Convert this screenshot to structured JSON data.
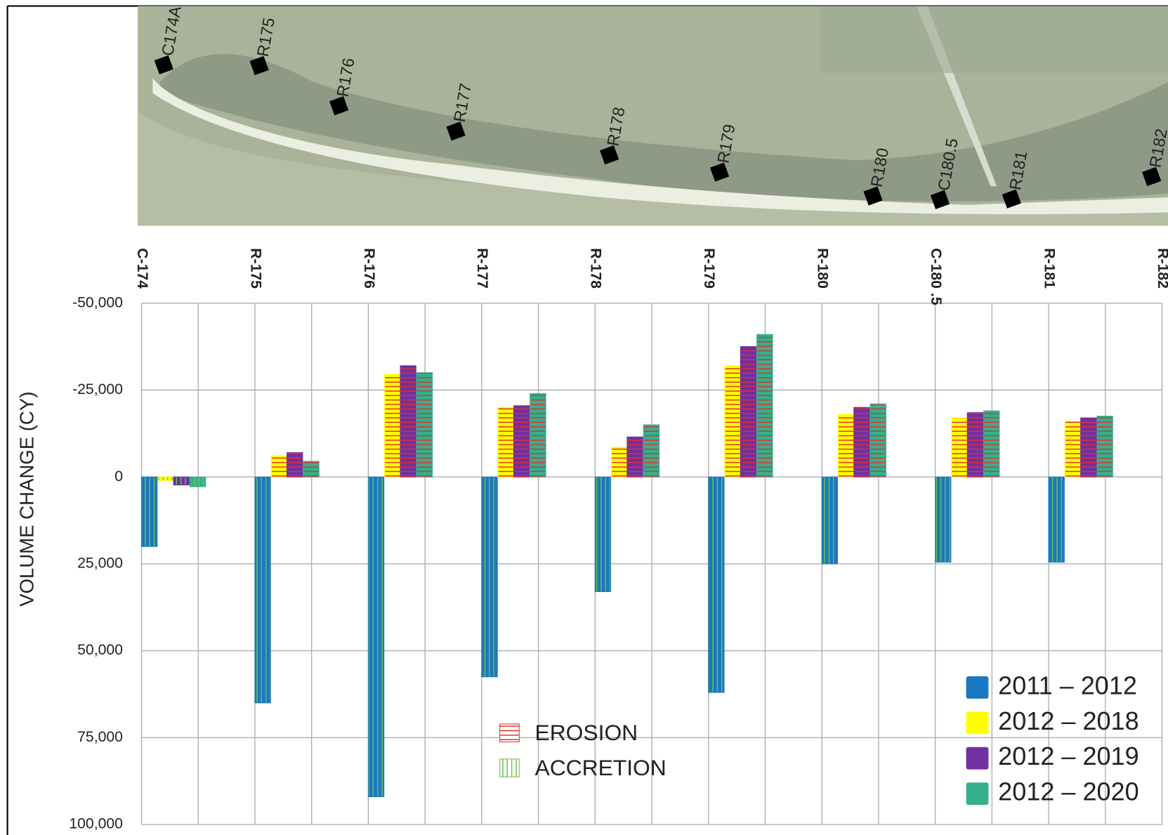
{
  "chart_data": {
    "type": "bar",
    "y_label": "VOLUME CHANGE  (CY)",
    "categories": [
      "C-174",
      "R-175",
      "R-176",
      "R-177",
      "R-178",
      "R-179",
      "R-180",
      "C-180 .5",
      "R-181",
      "R-182"
    ],
    "series": [
      {
        "name": "2011 – 2012",
        "color": "#1a78c2",
        "values": [
          20000,
          65000,
          92000,
          57500,
          33000,
          62000,
          25000,
          24500,
          24500,
          null
        ]
      },
      {
        "name": "2012 – 2018",
        "color": "#ffff00",
        "values": [
          1000,
          -6000,
          -29500,
          -20000,
          -8500,
          -32000,
          -18000,
          -17000,
          -16000,
          null
        ]
      },
      {
        "name": "2012 – 2019",
        "color": "#7030a0",
        "values": [
          2300,
          -7000,
          -32000,
          -20500,
          -11500,
          -37500,
          -20000,
          -18500,
          -17000,
          null
        ]
      },
      {
        "name": "2012 – 2020",
        "color": "#34b08c",
        "values": [
          2800,
          -4500,
          -30000,
          -24000,
          -15000,
          -41000,
          -21000,
          -19000,
          -17500,
          null
        ]
      }
    ],
    "ylim": [
      -50000,
      100000
    ],
    "yticks": [
      {
        "value": -50000,
        "label": "-50,000"
      },
      {
        "value": -25000,
        "label": "-25,000"
      },
      0,
      {
        "value": 25000,
        "label": "25,000"
      },
      {
        "value": 50000,
        "label": "50,000"
      },
      {
        "value": 75000,
        "label": "75,000"
      },
      {
        "value": 100000,
        "label": "100,000"
      }
    ],
    "inverted_y": true,
    "grid": true,
    "legend_position": "lower right",
    "hatch_legend": [
      {
        "label": "EROSION",
        "color": "#e03030"
      },
      {
        "label": "ACCRETION",
        "color": "#6cc04a"
      }
    ],
    "map_labels": [
      "C174A",
      "R175",
      "R176",
      "R177",
      "R178",
      "R179",
      "R180",
      "C180.5",
      "R181",
      "R182"
    ]
  }
}
